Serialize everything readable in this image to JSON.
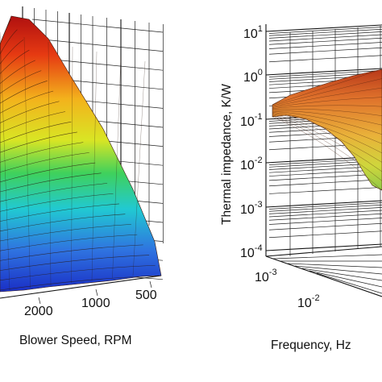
{
  "chart_data": [
    {
      "type": "surface",
      "panel": "left",
      "xlabel": "Blower Speed, RPM",
      "x_ticks": [
        "2000",
        "1000",
        "500"
      ],
      "x_values": [
        2000,
        1000,
        500
      ],
      "colormap": "jet",
      "grid": true
    },
    {
      "type": "surface",
      "panel": "right",
      "xlabel": "Frequency, Hz",
      "zlabel": "Thermal impedance, K/W",
      "z_scale": "log",
      "z_ticks": [
        {
          "base": "10",
          "exp": "1"
        },
        {
          "base": "10",
          "exp": "0"
        },
        {
          "base": "10",
          "exp": "-1"
        },
        {
          "base": "10",
          "exp": "-2"
        },
        {
          "base": "10",
          "exp": "-3"
        },
        {
          "base": "10",
          "exp": "-4"
        }
      ],
      "z_values": [
        10,
        1,
        0.1,
        0.01,
        0.001,
        0.0001
      ],
      "x_ticks": [
        {
          "base": "10",
          "exp": "-3"
        },
        {
          "base": "10",
          "exp": "-2"
        }
      ],
      "x_values": [
        0.001,
        0.01
      ],
      "colormap": "jet",
      "grid": true
    }
  ]
}
